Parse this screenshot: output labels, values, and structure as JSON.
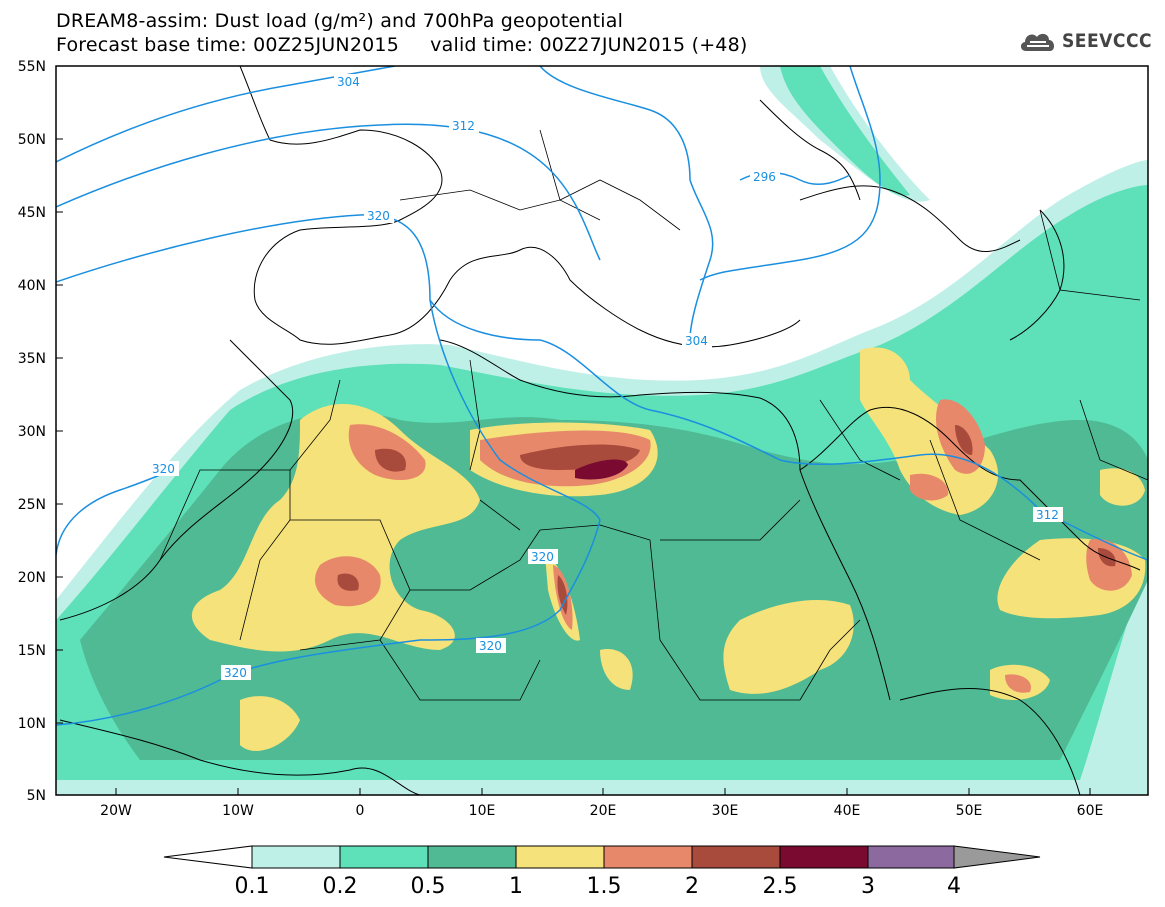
{
  "title": {
    "line1": "DREAM8-assim: Dust load (g/m²) and 700hPa geopotential",
    "line2": "Forecast base time: 00Z25JUN2015     valid time: 00Z27JUN2015 (+48)"
  },
  "logo": {
    "text": "SEEVCCC",
    "icon": "cloud-icon"
  },
  "map": {
    "lat_labels": [
      "55N",
      "50N",
      "45N",
      "40N",
      "35N",
      "30N",
      "25N",
      "20N",
      "15N",
      "10N",
      "5N"
    ],
    "lon_labels": [
      "20W",
      "10W",
      "0",
      "10E",
      "20E",
      "30E",
      "40E",
      "50E",
      "60E"
    ],
    "contour_labels": [
      "304",
      "312",
      "320",
      "296",
      "304",
      "320",
      "320",
      "320",
      "320",
      "312"
    ],
    "contour_color": "#1a8fe0"
  },
  "colorbar": {
    "labels": [
      "0.1",
      "0.2",
      "0.5",
      "1",
      "1.5",
      "2",
      "2.5",
      "3",
      "4"
    ],
    "colors": [
      "#ffffff",
      "#bff0e8",
      "#5ee0b8",
      "#4fba94",
      "#f5e27a",
      "#e8886a",
      "#a84a3c",
      "#7a0a30",
      "#8c6aa0",
      "#9a9a9a"
    ]
  }
}
